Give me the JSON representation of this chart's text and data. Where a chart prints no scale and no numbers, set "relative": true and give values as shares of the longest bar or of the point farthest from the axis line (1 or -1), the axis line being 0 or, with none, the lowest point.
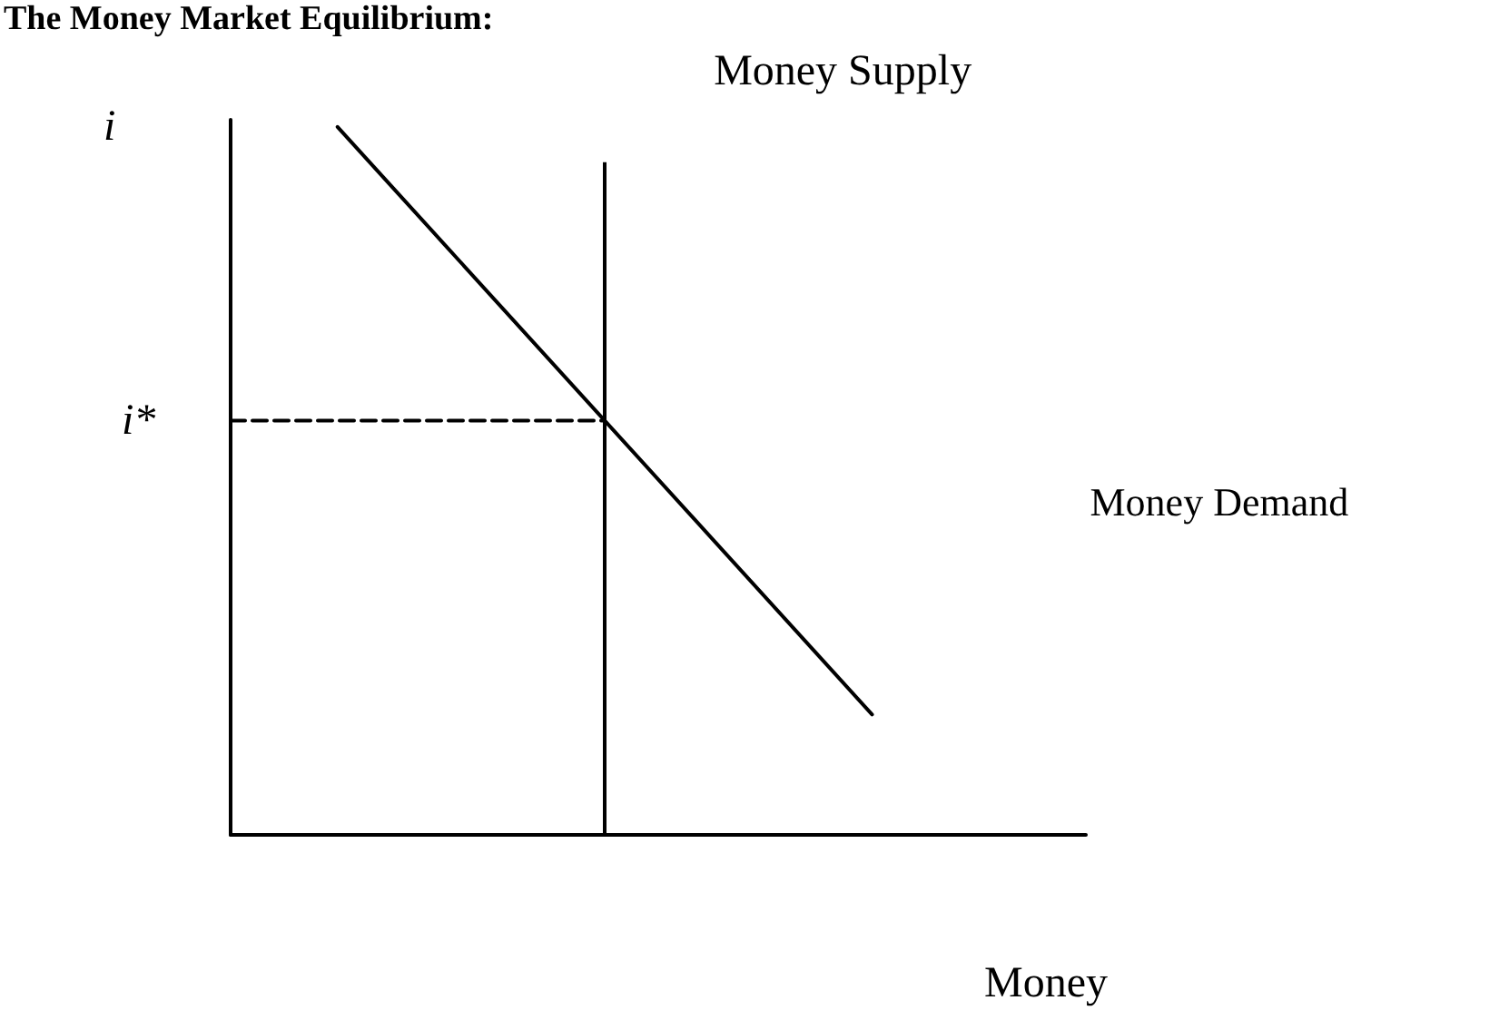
{
  "chart_data": {
    "type": "line",
    "title": "The Money Market Equilibrium:",
    "xlabel": "Money",
    "ylabel": "i",
    "relative": true,
    "grid": false,
    "legend": false,
    "marker": "none",
    "categories": [
      null,
      null,
      null,
      null,
      null,
      null,
      null,
      null,
      null,
      null,
      null,
      null,
      null,
      null,
      null,
      null,
      null
    ],
    "annotations": [
      "i*",
      "Money Supply"
    ],
    "series": [
      {
        "name": "Money Demand",
        "color": "#000000",
        "values": [
          null,
          null,
          1,
          0.917,
          0.834,
          0.751,
          0.668,
          0.585,
          0.502,
          0.419,
          0.336,
          0.253,
          0.17,
          null,
          null,
          null,
          null
        ],
        "line_style": "solid"
      },
      {
        "color": "#000000",
        "values": [
          0.585,
          0.585,
          0.585,
          0.585,
          0.585,
          0.585,
          0.585,
          0.585,
          null,
          null,
          null,
          null,
          null,
          null,
          null,
          null,
          null
        ],
        "line_style": "dashed"
      }
    ]
  }
}
